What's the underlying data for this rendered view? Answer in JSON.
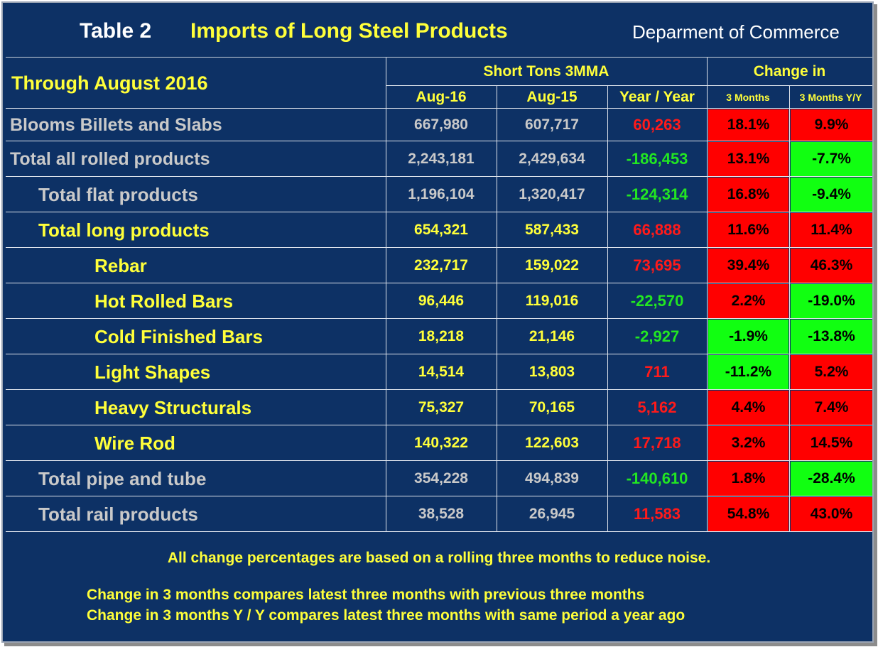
{
  "title": {
    "table_number": "Table 2",
    "main": "Imports of Long Steel Products",
    "source": "Deparment of Commerce"
  },
  "header": {
    "period": "Through August 2016",
    "group_tons": "Short Tons 3MMA",
    "group_change": "Change in",
    "col_aug16": "Aug-16",
    "col_aug15": "Aug-15",
    "col_yy": "Year / Year",
    "col_3m": "3 Months",
    "col_3m_yy": "3 Months Y/Y"
  },
  "rows": [
    {
      "label": "Blooms Billets and Slabs",
      "aug16": "667,980",
      "aug15": "607,717",
      "yy": "60,263",
      "m3": "18.1%",
      "m3yy": "9.9%"
    },
    {
      "label": "Total all rolled products",
      "aug16": "2,243,181",
      "aug15": "2,429,634",
      "yy": "-186,453",
      "m3": "13.1%",
      "m3yy": "-7.7%"
    },
    {
      "label": "Total flat products",
      "aug16": "1,196,104",
      "aug15": "1,320,417",
      "yy": "-124,314",
      "m3": "16.8%",
      "m3yy": "-9.4%"
    },
    {
      "label": "Total long products",
      "aug16": "654,321",
      "aug15": "587,433",
      "yy": "66,888",
      "m3": "11.6%",
      "m3yy": "11.4%"
    },
    {
      "label": "Rebar",
      "aug16": "232,717",
      "aug15": "159,022",
      "yy": "73,695",
      "m3": "39.4%",
      "m3yy": "46.3%"
    },
    {
      "label": "Hot Rolled Bars",
      "aug16": "96,446",
      "aug15": "119,016",
      "yy": "-22,570",
      "m3": "2.2%",
      "m3yy": "-19.0%"
    },
    {
      "label": "Cold Finished Bars",
      "aug16": "18,218",
      "aug15": "21,146",
      "yy": "-2,927",
      "m3": "-1.9%",
      "m3yy": "-13.8%"
    },
    {
      "label": "Light Shapes",
      "aug16": "14,514",
      "aug15": "13,803",
      "yy": "711",
      "m3": "-11.2%",
      "m3yy": "5.2%"
    },
    {
      "label": "Heavy Structurals",
      "aug16": "75,327",
      "aug15": "70,165",
      "yy": "5,162",
      "m3": "4.4%",
      "m3yy": "7.4%"
    },
    {
      "label": "Wire Rod",
      "aug16": "140,322",
      "aug15": "122,603",
      "yy": "17,718",
      "m3": "3.2%",
      "m3yy": "14.5%"
    },
    {
      "label": "Total pipe and tube",
      "aug16": "354,228",
      "aug15": "494,839",
      "yy": "-140,610",
      "m3": "1.8%",
      "m3yy": "-28.4%"
    },
    {
      "label": "Total rail products",
      "aug16": "38,528",
      "aug15": "26,945",
      "yy": "11,583",
      "m3": "54.8%",
      "m3yy": "43.0%"
    }
  ],
  "notes": {
    "line1": "All change percentages are based on a rolling three months to reduce noise.",
    "line2": "Change in 3 months compares latest three months with previous three months",
    "line3": "Change in 3 months  Y / Y compares latest three months with same period a year ago"
  },
  "colors": {
    "background": "#0d3165",
    "increase_cell": "#ff0000",
    "decrease_cell": "#11ff11",
    "positive_text": "#ff1a1a",
    "negative_text": "#22e622",
    "highlight_text": "#ffff3a"
  }
}
